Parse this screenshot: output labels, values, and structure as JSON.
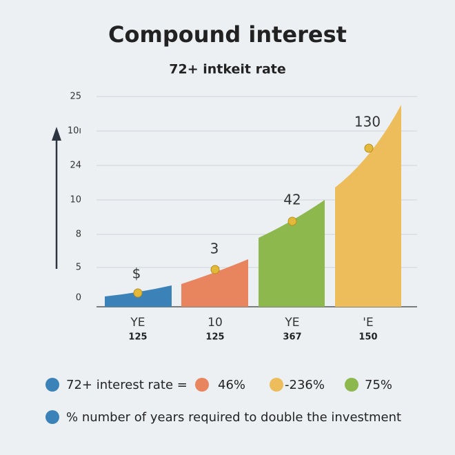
{
  "header": {
    "title": "Compound interest",
    "subtitle": "72+ intkeit rate"
  },
  "axis": {
    "labels": [
      "25",
      "10ı",
      "24",
      "10",
      "8",
      "5",
      "0"
    ]
  },
  "points": [
    "$",
    "3",
    "42",
    "130"
  ],
  "categories": [
    {
      "label": "YE",
      "value": "125"
    },
    {
      "label": "10",
      "value": "125"
    },
    {
      "label": "YE",
      "value": "367"
    },
    {
      "label": "'E",
      "value": "150"
    }
  ],
  "legend": [
    "72+ interest rate =",
    "46%",
    "-236%",
    "75%"
  ],
  "footnote": "% number of years required to double the investment"
}
